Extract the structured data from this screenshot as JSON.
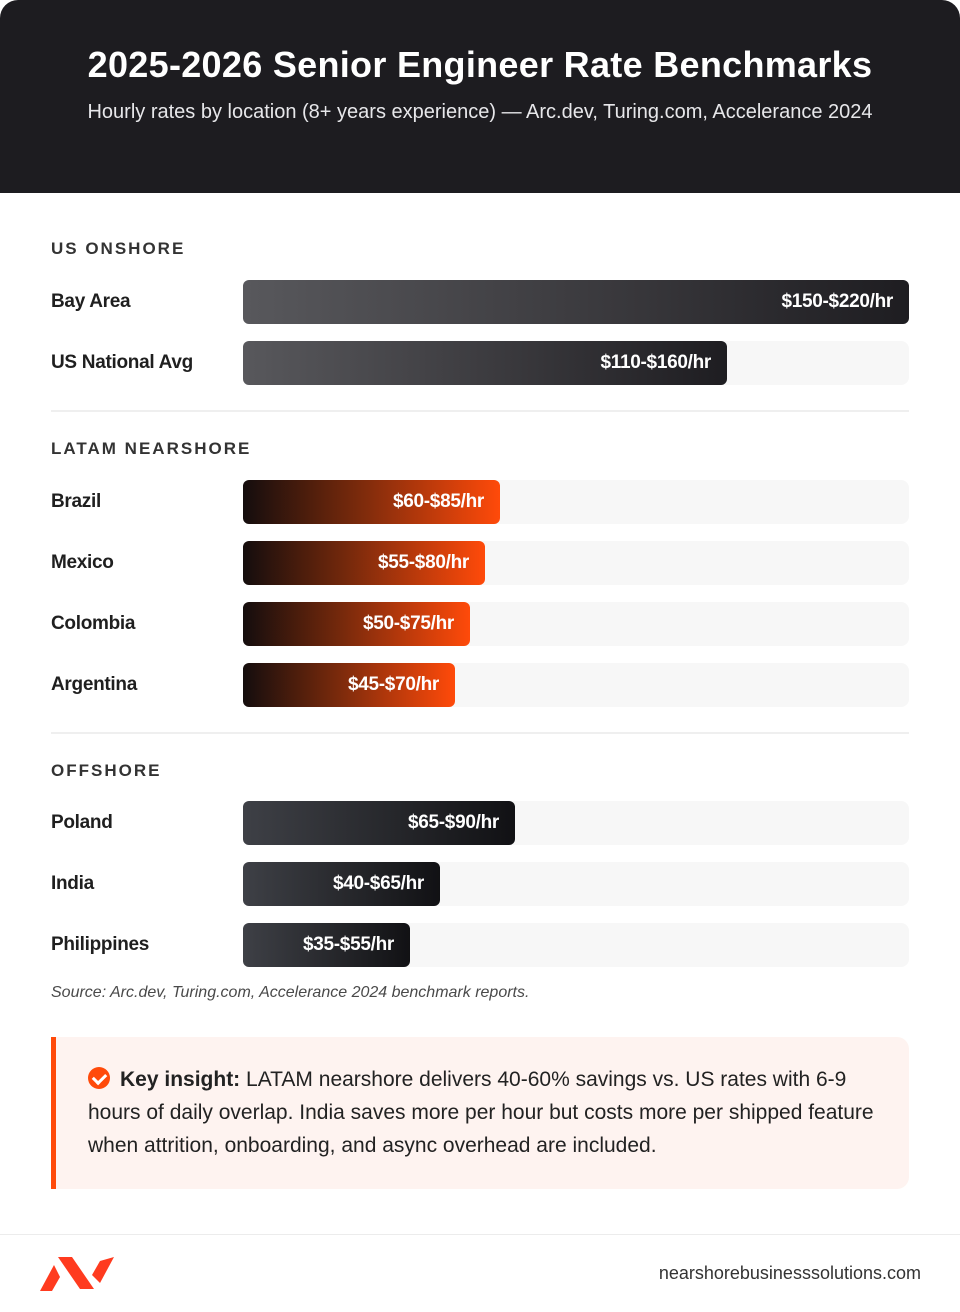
{
  "header": {
    "title": "2025-2026 Senior Engineer Rate Benchmarks",
    "subtitle": "Hourly rates by location (8+ years experience) — Arc.dev, Turing.com, Accelerance 2024"
  },
  "chart_data": {
    "type": "bar",
    "orientation": "horizontal",
    "title": "2025-2026 Senior Engineer Rate Benchmarks",
    "subtitle": "Hourly rates by location (8+ years experience) — Arc.dev, Turing.com, Accelerance 2024",
    "scale_max": 220,
    "groups": [
      {
        "name": "US ONSHORE",
        "style": "us",
        "rows": [
          {
            "label": "Bay Area",
            "value_text": "$150-$220/hr",
            "low": 150,
            "high": 220
          },
          {
            "label": "US National Avg",
            "value_text": "$110-$160/hr",
            "low": 110,
            "high": 160
          }
        ]
      },
      {
        "name": "LATAM NEARSHORE",
        "style": "latam",
        "rows": [
          {
            "label": "Brazil",
            "value_text": "$60-$85/hr",
            "low": 60,
            "high": 85
          },
          {
            "label": "Mexico",
            "value_text": "$55-$80/hr",
            "low": 55,
            "high": 80
          },
          {
            "label": "Colombia",
            "value_text": "$50-$75/hr",
            "low": 50,
            "high": 75
          },
          {
            "label": "Argentina",
            "value_text": "$45-$70/hr",
            "low": 45,
            "high": 70
          }
        ]
      },
      {
        "name": "OFFSHORE",
        "style": "off",
        "rows": [
          {
            "label": "Poland",
            "value_text": "$65-$90/hr",
            "low": 65,
            "high": 90
          },
          {
            "label": "India",
            "value_text": "$40-$65/hr",
            "low": 40,
            "high": 65
          },
          {
            "label": "Philippines",
            "value_text": "$35-$55/hr",
            "low": 35,
            "high": 55
          }
        ]
      }
    ],
    "colors": {
      "us": "#37363a",
      "latam": "#ff4a0a",
      "offshore": "#1d1e22"
    }
  },
  "source": "Source: Arc.dev, Turing.com, Accelerance 2024 benchmark reports.",
  "insight": {
    "icon": "check-circle-icon",
    "title": "Key insight:",
    "body": "LATAM nearshore delivers 40-60% savings vs. US rates with 6-9 hours of daily overlap. India saves more per hour but costs more per shipped feature when attrition, onboarding, and async overhead are included."
  },
  "footer": {
    "logo": "brand-logo-icon",
    "site": "nearshorebusinesssolutions.com"
  },
  "accent_color": "#ff4a0a"
}
